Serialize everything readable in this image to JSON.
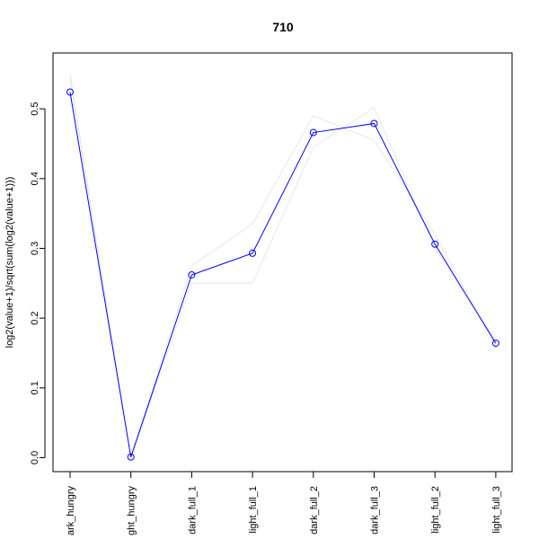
{
  "chart_data": {
    "type": "line",
    "title": "710",
    "xlabel": "",
    "ylabel": "log2(value+1)/sqrt(sum(log2(value+1)))",
    "categories": [
      "dark_hungry",
      "light_hungry",
      "dark_full_1",
      "light_full_1",
      "dark_full_2",
      "dark_full_3",
      "light_full_2",
      "light_full_3"
    ],
    "category_labels_visible": [
      "ark_hungry",
      "ght_hungry",
      "dark_full_1",
      "light_full_1",
      "dark_full_2",
      "dark_full_3",
      "light_full_2",
      "light_full_3"
    ],
    "ylim": [
      -0.02,
      0.58
    ],
    "yticks": [
      0.0,
      0.1,
      0.2,
      0.3,
      0.4,
      0.5
    ],
    "ytick_labels": [
      "0.0",
      "0.1",
      "0.2",
      "0.3",
      "0.4",
      "0.5"
    ],
    "grid": false,
    "series": [
      {
        "values": [
          0.524,
          0.001,
          0.262,
          0.293,
          0.466,
          0.479,
          0.306,
          0.164
        ],
        "color": "#0000ff",
        "marker": "open-circle"
      }
    ],
    "background_series": [
      {
        "values": [
          0.55,
          0.0,
          0.275,
          0.335,
          0.49,
          0.455,
          0.32,
          0.16
        ],
        "color": "#e8e8e8"
      },
      {
        "values": [
          0.545,
          0.0,
          0.25,
          0.25,
          0.445,
          0.502,
          0.3,
          0.168
        ],
        "color": "#e8e8e8"
      }
    ]
  }
}
